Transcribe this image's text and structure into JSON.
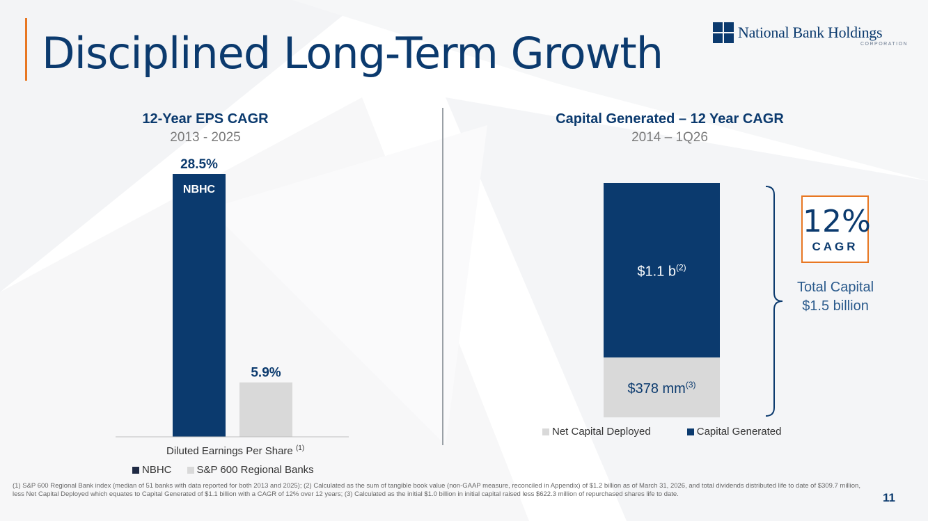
{
  "page": {
    "title": "Disciplined Long-Term Growth",
    "page_number": "11"
  },
  "logo": {
    "name": "National Bank Holdings",
    "sub": "CORPORATION"
  },
  "colors": {
    "navy": "#0b3a6e",
    "gray_bar": "#d9d9d9",
    "orange": "#e87722"
  },
  "chart_data": [
    {
      "type": "bar",
      "title": "12-Year EPS CAGR",
      "subtitle": "2013 - 2025",
      "xlabel": "Diluted Earnings Per Share",
      "xlabel_note": "(1)",
      "categories": [
        "NBHC",
        "S&P 600 Regional Banks"
      ],
      "values": [
        28.5,
        5.9
      ],
      "value_labels": [
        "28.5%",
        "5.9%"
      ],
      "bar_inner_label": "NBHC",
      "units": "%",
      "ylim": [
        0,
        30
      ],
      "grid": false,
      "legend": {
        "position": "bottom",
        "entries": [
          {
            "name": "NBHC",
            "color": "#0b3a6e"
          },
          {
            "name": "S&P 600 Regional Banks",
            "color": "#d9d9d9"
          }
        ]
      }
    },
    {
      "type": "bar",
      "stacked": true,
      "title": "Capital Generated – 12 Year CAGR",
      "subtitle": "2014 – 1Q26",
      "categories": [
        ""
      ],
      "series": [
        {
          "name": "Net Capital Deployed",
          "values": [
            0.378
          ],
          "label": "$378 mm",
          "label_note": "(3)",
          "color": "#d9d9d9"
        },
        {
          "name": "Capital Generated",
          "values": [
            1.1
          ],
          "label": "$1.1 b",
          "label_note": "(2)",
          "color": "#0b3a6e"
        }
      ],
      "units": "billions $",
      "grid": false,
      "legend": {
        "position": "bottom",
        "entries": [
          {
            "name": "Net Capital Deployed",
            "color": "#d9d9d9"
          },
          {
            "name": "Capital Generated",
            "color": "#0b3a6e"
          }
        ]
      },
      "annotations": {
        "cagr_value": "12%",
        "cagr_label": "CAGR",
        "total_line1": "Total Capital",
        "total_line2": "$1.5 billion"
      }
    }
  ],
  "footnote": "(1) S&P 600 Regional Bank index (median of 51 banks with data reported for both 2013 and 2025); (2) Calculated as the sum of tangible book value (non-GAAP measure, reconciled in Appendix) of $1.2 billion as of March 31, 2026, and total dividends distributed life to date of $309.7 million, less Net Capital Deployed which equates to Capital Generated of $1.1 billion with a CAGR of 12% over 12 years; (3) Calculated as the initial $1.0 billion in initial capital raised less $622.3 million of repurchased shares life to date."
}
